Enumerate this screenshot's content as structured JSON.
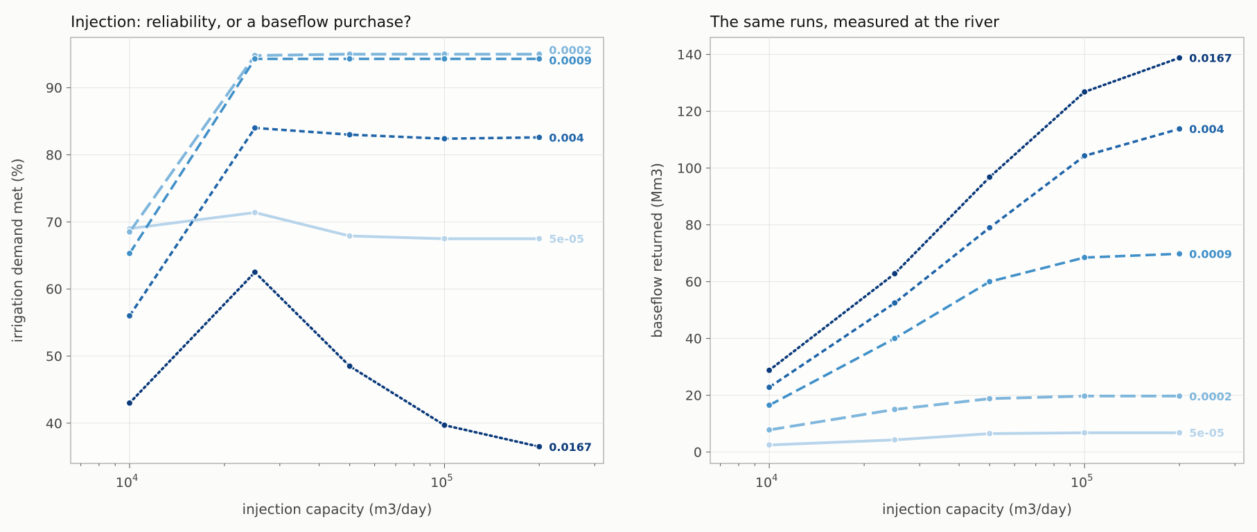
{
  "chart_data": [
    {
      "type": "line",
      "title": "Injection: reliability, or a baseflow purchase?",
      "xlabel": "injection capacity (m3/day)",
      "ylabel": "irrigation demand met (%)",
      "xscale": "log",
      "xlim": [
        6500,
        320000
      ],
      "ylim": [
        34,
        97.5
      ],
      "xtick_labels": [
        "10",
        "10"
      ],
      "xtick_exponents": [
        "4",
        "5"
      ],
      "ytick_labels": [
        "40",
        "50",
        "60",
        "70",
        "80",
        "90"
      ],
      "grid": true,
      "legend": "labels at line ends",
      "x": [
        10000,
        25000,
        50000,
        100000,
        200000
      ],
      "series": [
        {
          "name": "5e-05",
          "values": [
            69.0,
            71.4,
            67.9,
            67.5,
            67.5
          ],
          "color": "#b7d4ea",
          "dash": "solid"
        },
        {
          "name": "0.0002",
          "values": [
            68.5,
            94.8,
            95.0,
            95.0,
            95.0
          ],
          "color": "#7fb6db",
          "dash": "longdash"
        },
        {
          "name": "0.0009",
          "values": [
            65.3,
            94.3,
            94.3,
            94.3,
            94.3
          ],
          "color": "#4090c8",
          "dash": "dash"
        },
        {
          "name": "0.004",
          "values": [
            56.0,
            84.0,
            83.0,
            82.4,
            82.6
          ],
          "color": "#1f65a8",
          "dash": "shortdash"
        },
        {
          "name": "0.0167",
          "values": [
            43.0,
            62.5,
            48.5,
            39.7,
            36.5
          ],
          "color": "#0b3a7a",
          "dash": "dot"
        }
      ]
    },
    {
      "type": "line",
      "title": "The same runs, measured at the river",
      "xlabel": "injection capacity (m3/day)",
      "ylabel": "baseflow returned (Mm3)",
      "xscale": "log",
      "xlim": [
        6500,
        320000
      ],
      "ylim": [
        -4,
        146
      ],
      "xtick_labels": [
        "10",
        "10"
      ],
      "xtick_exponents": [
        "4",
        "5"
      ],
      "ytick_labels": [
        "0",
        "20",
        "40",
        "60",
        "80",
        "100",
        "120",
        "140"
      ],
      "grid": true,
      "legend": "labels at line ends",
      "x": [
        10000,
        25000,
        50000,
        100000,
        200000
      ],
      "series": [
        {
          "name": "5e-05",
          "values": [
            2.5,
            4.3,
            6.5,
            6.8,
            6.8
          ],
          "color": "#b7d4ea",
          "dash": "solid"
        },
        {
          "name": "0.0002",
          "values": [
            7.8,
            15.0,
            18.8,
            19.7,
            19.7
          ],
          "color": "#7fb6db",
          "dash": "longdash"
        },
        {
          "name": "0.0009",
          "values": [
            16.5,
            40.0,
            60.0,
            68.5,
            69.8
          ],
          "color": "#4090c8",
          "dash": "dash"
        },
        {
          "name": "0.004",
          "values": [
            22.8,
            52.5,
            79.0,
            104.3,
            113.8
          ],
          "color": "#1f65a8",
          "dash": "shortdash"
        },
        {
          "name": "0.0167",
          "values": [
            28.8,
            62.8,
            96.8,
            126.8,
            138.8
          ],
          "color": "#0b3a7a",
          "dash": "dot"
        }
      ]
    }
  ]
}
